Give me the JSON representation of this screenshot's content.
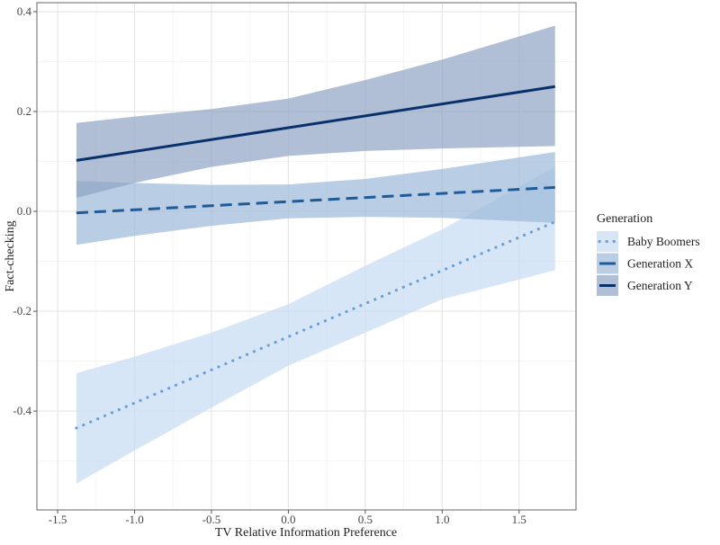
{
  "chart_data": {
    "type": "line",
    "title": "",
    "xlabel": "TV Relative Information Preference",
    "ylabel": "Fact-checking",
    "xlim": [
      -1.635,
      1.87
    ],
    "ylim": [
      -0.598,
      0.418
    ],
    "xticks": [
      -1.5,
      -1.0,
      -0.5,
      0.0,
      0.5,
      1.0,
      1.5
    ],
    "xtick_labels": [
      "-1.5",
      "-1.0",
      "-0.5",
      "0.0",
      "0.5",
      "1.0",
      "1.5"
    ],
    "yticks": [
      -0.4,
      -0.2,
      0.0,
      0.2,
      0.4
    ],
    "ytick_labels": [
      "-0.4",
      "-0.2",
      "0.0",
      "0.2",
      "0.4"
    ],
    "grid": true,
    "legend": {
      "title": "Generation",
      "placement": "right"
    },
    "series": [
      {
        "name": "Baby Boomers",
        "line_style": "dotted",
        "line_color": "#6a9fd8",
        "band_color": "#c6dbf3",
        "x": [
          -1.378,
          1.734
        ],
        "y": [
          -0.434,
          -0.021
        ],
        "band": {
          "x": [
            -1.378,
            -1.0,
            -0.5,
            0.0,
            0.5,
            1.0,
            1.734
          ],
          "upper": [
            -0.324,
            -0.291,
            -0.243,
            -0.186,
            -0.109,
            -0.036,
            0.089
          ],
          "lower": [
            -0.545,
            -0.479,
            -0.393,
            -0.309,
            -0.243,
            -0.176,
            -0.118
          ]
        }
      },
      {
        "name": "Generation X",
        "line_style": "dashed",
        "line_color": "#1f5a99",
        "band_color": "#9bb9d8",
        "x": [
          -1.378,
          1.734
        ],
        "y": [
          -0.003,
          0.048
        ],
        "band": {
          "x": [
            -1.378,
            -1.0,
            -0.5,
            0.0,
            0.5,
            1.0,
            1.734
          ],
          "upper": [
            0.061,
            0.057,
            0.053,
            0.054,
            0.065,
            0.085,
            0.119
          ],
          "lower": [
            -0.067,
            -0.049,
            -0.029,
            -0.014,
            -0.011,
            -0.013,
            -0.023
          ]
        }
      },
      {
        "name": "Generation Y",
        "line_style": "solid",
        "line_color": "#08306b",
        "band_color": "#8ea4c3",
        "x": [
          -1.378,
          1.734
        ],
        "y": [
          0.102,
          0.25
        ],
        "band": {
          "x": [
            -1.378,
            -1.0,
            -0.5,
            0.0,
            0.5,
            1.0,
            1.734
          ],
          "upper": [
            0.177,
            0.19,
            0.205,
            0.226,
            0.263,
            0.304,
            0.372
          ],
          "lower": [
            0.027,
            0.057,
            0.089,
            0.111,
            0.121,
            0.126,
            0.131
          ]
        }
      }
    ]
  }
}
